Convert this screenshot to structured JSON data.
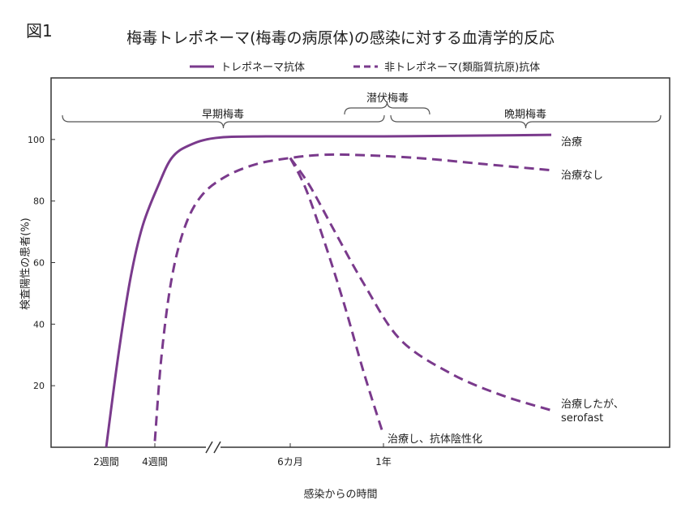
{
  "figure_label": "図1",
  "chart_data": {
    "type": "line",
    "title": "梅毒トレポネーマ(梅毒の病原体)の感染に対する血清学的反応",
    "xlabel": "感染からの時間",
    "ylabel": "検査陽性の患者(%)",
    "ylim": [
      0,
      120
    ],
    "y_ticks": [
      20,
      40,
      60,
      80,
      100
    ],
    "x_ticks": [
      "2週間",
      "4週間",
      "6カ月",
      "1年"
    ],
    "grid": false,
    "legend_position": "top",
    "legend": [
      {
        "label": "トレポネーマ抗体",
        "style": "solid"
      },
      {
        "label": "非トレポネーマ(類脂質抗原)抗体",
        "style": "dashed"
      }
    ],
    "phases": [
      {
        "label": "早期梅毒",
        "start": 0,
        "end": 1.0
      },
      {
        "label": "潜伏梅毒",
        "start": 0.85,
        "end": 1.15
      },
      {
        "label": "晩期梅毒",
        "start": 1.0,
        "end": 1.85
      }
    ],
    "series": [
      {
        "key": "treponemal",
        "style": "solid",
        "x": [
          0.04,
          0.06,
          0.08,
          0.1,
          0.13,
          0.17,
          0.22,
          0.3,
          0.45,
          1.0,
          1.5
        ],
        "y": [
          0,
          30,
          55,
          72,
          85,
          94,
          98,
          100.5,
          101,
          101,
          101.5
        ],
        "end_label": "治療"
      },
      {
        "key": "nontrep_untreated",
        "style": "dashed",
        "x": [
          0.12,
          0.14,
          0.17,
          0.21,
          0.26,
          0.33,
          0.42,
          0.52,
          0.68,
          0.85,
          1.1,
          1.3,
          1.5
        ],
        "y": [
          2,
          30,
          55,
          72,
          82,
          88,
          92,
          94,
          95,
          95,
          94,
          92,
          90
        ],
        "end_label": "治療なし"
      },
      {
        "key": "nontrep_negative",
        "style": "dashed",
        "x": [
          0.52,
          0.6,
          0.7,
          0.8,
          0.9,
          1.0
        ],
        "y": [
          94,
          84,
          66,
          46,
          24,
          4
        ],
        "end_label": "治療し、抗体陰性化"
      },
      {
        "key": "nontrep_serofast",
        "style": "dashed",
        "x": [
          0.52,
          0.62,
          0.75,
          0.9,
          1.05,
          1.2,
          1.35,
          1.5
        ],
        "y": [
          94,
          85,
          70,
          53,
          35,
          24,
          17,
          12
        ],
        "end_label": "治療したが、\nserofast"
      }
    ]
  }
}
